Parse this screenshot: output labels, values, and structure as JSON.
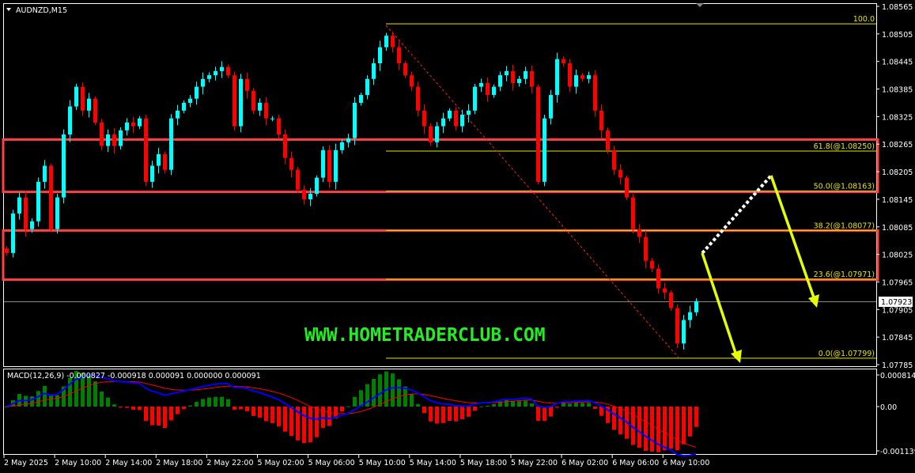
{
  "header": {
    "symbol_label": "AUDNZD,M15"
  },
  "watermark": "WWW.HOMETRADERCLUB.COM",
  "colors": {
    "bull": "#00ffff",
    "bear": "#ff0000",
    "fib": "#e6e600",
    "zone": "#ff4040",
    "macd_line": "#0000ff",
    "signal_line": "#ff0000",
    "hist_up": "#008000",
    "hist_down": "#ff0000",
    "watermark": "#22ee22"
  },
  "chart_data": [
    {
      "type": "candlestick",
      "title": "AUDNZD,M15",
      "ylim": [
        1.07785,
        1.08565
      ],
      "price_ticks": [
        "1.08565",
        "1.08505",
        "1.08445",
        "1.08385",
        "1.08325",
        "1.08265",
        "1.08205",
        "1.08145",
        "1.08085",
        "1.08025",
        "1.07965",
        "1.07905",
        "1.07845",
        "1.07785"
      ],
      "current_price": "1.07923",
      "time_ticks": [
        "2 May 2025",
        "2 May 10:00",
        "2 May 14:00",
        "2 May 18:00",
        "2 May 22:00",
        "5 May 02:00",
        "5 May 06:00",
        "5 May 10:00",
        "5 May 14:00",
        "5 May 18:00",
        "5 May 22:00",
        "6 May 02:00",
        "6 May 06:00",
        "6 May 10:00"
      ],
      "closes": [
        1.08028,
        1.08114,
        1.08149,
        1.0808,
        1.08097,
        1.08183,
        1.08218,
        1.0808,
        1.08149,
        1.08286,
        1.08347,
        1.0839,
        1.08338,
        1.08364,
        1.08312,
        1.08261,
        1.08286,
        1.08261,
        1.08295,
        1.08312,
        1.08304,
        1.08321,
        1.08183,
        1.08218,
        1.08243,
        1.08209,
        1.08321,
        1.08338,
        1.08355,
        1.08364,
        1.0839,
        1.08407,
        1.08415,
        1.08424,
        1.08433,
        1.08415,
        1.08304,
        1.08407,
        1.08381,
        1.08338,
        1.08355,
        1.08321,
        1.08321,
        1.08286,
        1.08235,
        1.08209,
        1.08166,
        1.08145,
        1.08157,
        1.08192,
        1.08252,
        1.08183,
        1.08252,
        1.08269,
        1.08278,
        1.08355,
        1.08372,
        1.08407,
        1.08441,
        1.08476,
        1.08501,
        1.08476,
        1.08441,
        1.08415,
        1.0839,
        1.08338,
        1.08304,
        1.08269,
        1.08304,
        1.08321,
        1.08338,
        1.08304,
        1.08329,
        1.08338,
        1.0839,
        1.08398,
        1.08372,
        1.0839,
        1.08415,
        1.08424,
        1.08398,
        1.08407,
        1.08424,
        1.0839,
        1.08183,
        1.08321,
        1.08372,
        1.0845,
        1.08441,
        1.0839,
        1.08415,
        1.08407,
        1.08415,
        1.08338,
        1.08295,
        1.08252,
        1.08209,
        1.08192,
        1.08149,
        1.0808,
        1.08063,
        1.08011,
        1.07994,
        1.07951,
        1.07942,
        1.07908,
        1.07831,
        1.07882,
        1.07899,
        1.07923
      ],
      "fibonacci": [
        {
          "label": "100.0",
          "price": 1.08527
        },
        {
          "label": "61.8(@1.08250)",
          "price": 1.0825
        },
        {
          "label": "50.0(@1.08163)",
          "price": 1.08163
        },
        {
          "label": "38.2(@1.08077)",
          "price": 1.08077
        },
        {
          "label": "23.6(@1.07971)",
          "price": 1.07971
        },
        {
          "label": "0.0(@1.07799)",
          "price": 1.07799
        }
      ],
      "zones": [
        {
          "from": 1.08161,
          "to": 1.08275
        },
        {
          "from": 1.0797,
          "to": 1.08077
        }
      ]
    },
    {
      "type": "line",
      "title": "MACD(12,26,9) -0.000827 -0.000918 0.000091 0.000000 0.000091",
      "ylim": [
        -0.001139,
        0.000814
      ],
      "ticks": [
        "0.000814",
        "0.00",
        "-0.001139"
      ]
    }
  ]
}
